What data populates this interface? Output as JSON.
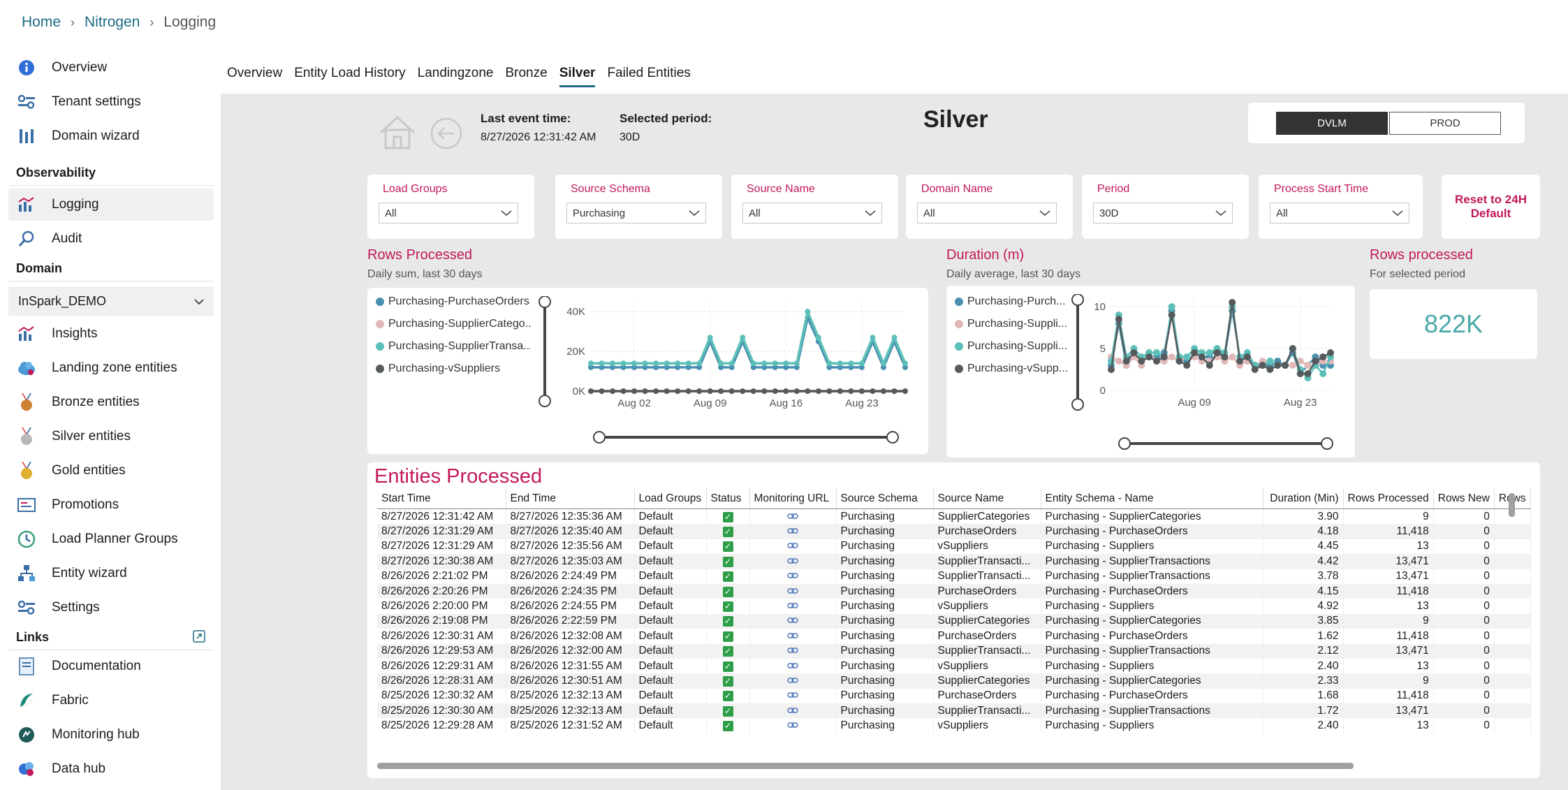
{
  "breadcrumb": [
    "Home",
    "Nitrogen",
    "Logging"
  ],
  "sidebar": {
    "top_items": [
      {
        "label": "Overview",
        "icon": "info-icon"
      },
      {
        "label": "Tenant settings",
        "icon": "tenant-settings-icon"
      },
      {
        "label": "Domain wizard",
        "icon": "domain-wizard-icon"
      }
    ],
    "observability_title": "Observability",
    "observability_items": [
      {
        "label": "Logging",
        "icon": "logging-chart-icon",
        "active": true
      },
      {
        "label": "Audit",
        "icon": "audit-search-icon"
      }
    ],
    "domain_title": "Domain",
    "domain_value": "InSpark_DEMO",
    "domain_items": [
      {
        "label": "Insights",
        "icon": "insights-chart-icon"
      },
      {
        "label": "Landing zone entities",
        "icon": "cloud-icon"
      },
      {
        "label": "Bronze entities",
        "icon": "bronze-medal-icon"
      },
      {
        "label": "Silver entities",
        "icon": "silver-medal-icon"
      },
      {
        "label": "Gold entities",
        "icon": "gold-medal-icon"
      },
      {
        "label": "Promotions",
        "icon": "promotions-icon"
      },
      {
        "label": "Load Planner Groups",
        "icon": "clock-icon"
      },
      {
        "label": "Entity wizard",
        "icon": "entity-wizard-icon"
      },
      {
        "label": "Settings",
        "icon": "settings-icon"
      }
    ],
    "links_title": "Links",
    "links_items": [
      {
        "label": "Documentation",
        "icon": "documentation-icon"
      },
      {
        "label": "Fabric",
        "icon": "fabric-icon"
      },
      {
        "label": "Monitoring hub",
        "icon": "monitoring-hub-icon"
      },
      {
        "label": "Data hub",
        "icon": "data-hub-icon"
      }
    ]
  },
  "tabs": [
    {
      "label": "Overview",
      "active": false
    },
    {
      "label": "Entity Load History",
      "active": false
    },
    {
      "label": "Landingzone",
      "active": false
    },
    {
      "label": "Bronze",
      "active": false
    },
    {
      "label": "Silver",
      "active": true
    },
    {
      "label": "Failed Entities",
      "active": false
    }
  ],
  "report": {
    "last_event_label": "Last event time:",
    "last_event_value": "8/27/2026 12:31:42 AM",
    "selected_period_label": "Selected period:",
    "selected_period_value": "30D",
    "title": "Silver",
    "env_buttons": [
      {
        "label": "DVLM",
        "active": true
      },
      {
        "label": "PROD",
        "active": false
      }
    ],
    "reset_label": "Reset to 24H Default",
    "slicers": [
      {
        "label": "Load Groups",
        "value": "All"
      },
      {
        "label": "Source Schema",
        "value": "Purchasing"
      },
      {
        "label": "Source Name",
        "value": "All"
      },
      {
        "label": "Domain Name",
        "value": "All"
      },
      {
        "label": "Period",
        "value": "30D"
      },
      {
        "label": "Process Start Time",
        "value": "All"
      }
    ],
    "rows_processed_title": "Rows Processed",
    "rows_processed_sub": "Daily sum, last 30 days",
    "duration_title": "Duration (m)",
    "duration_sub": "Daily average, last 30 days",
    "kpi_title": "Rows processed",
    "kpi_sub": "For selected period",
    "kpi_value": "822K",
    "legend_rows": [
      "Purchasing-PurchaseOrders",
      "Purchasing-SupplierCatego...",
      "Purchasing-SupplierTransa...",
      "Purchasing-vSuppliers"
    ],
    "legend_duration": [
      "Purchasing-Purch...",
      "Purchasing-Suppli...",
      "Purchasing-Suppli...",
      "Purchasing-vSupp..."
    ],
    "colors": {
      "accent": "#c2185b",
      "brand": "#1e6b83",
      "kpi": "#4aa8a8"
    },
    "entities_title": "Entities Processed"
  },
  "chart_data": [
    {
      "type": "line",
      "title": "Rows Processed",
      "subtitle": "Daily sum, last 30 days",
      "x_ticks": [
        "Aug 02",
        "Aug 09",
        "Aug 16",
        "Aug 23"
      ],
      "y_ticks": [
        "0K",
        "20K",
        "40K"
      ],
      "ylim": [
        0,
        45000
      ],
      "x": [
        "Jul 29",
        "Jul 30",
        "Jul 31",
        "Aug 01",
        "Aug 02",
        "Aug 03",
        "Aug 04",
        "Aug 05",
        "Aug 06",
        "Aug 07",
        "Aug 08",
        "Aug 09",
        "Aug 10",
        "Aug 11",
        "Aug 12",
        "Aug 13",
        "Aug 14",
        "Aug 15",
        "Aug 16",
        "Aug 17",
        "Aug 18",
        "Aug 19",
        "Aug 20",
        "Aug 21",
        "Aug 22",
        "Aug 23",
        "Aug 24",
        "Aug 25",
        "Aug 26",
        "Aug 27"
      ],
      "series": [
        {
          "name": "Purchasing-PurchaseOrders",
          "color": "#4a90b0",
          "values": [
            12000,
            12000,
            12000,
            12000,
            12000,
            12000,
            12000,
            12000,
            12000,
            12000,
            12000,
            25000,
            12000,
            12000,
            25000,
            12000,
            12000,
            12000,
            12000,
            12000,
            37000,
            25000,
            12000,
            12000,
            12000,
            12000,
            25000,
            12000,
            25000,
            12000
          ]
        },
        {
          "name": "Purchasing-SupplierCategories",
          "color": "#e0b8b8",
          "values": [
            0,
            0,
            0,
            0,
            0,
            0,
            0,
            0,
            0,
            0,
            0,
            0,
            0,
            0,
            0,
            0,
            0,
            0,
            0,
            0,
            0,
            0,
            0,
            0,
            0,
            0,
            0,
            0,
            0,
            0
          ]
        },
        {
          "name": "Purchasing-SupplierTransactions",
          "color": "#5cc0b8",
          "values": [
            14000,
            14000,
            14000,
            14000,
            14000,
            14000,
            14000,
            14000,
            14000,
            14000,
            14000,
            27000,
            14000,
            14000,
            27000,
            14000,
            14000,
            14000,
            14000,
            14000,
            40000,
            27000,
            14000,
            14000,
            14000,
            14000,
            27000,
            14000,
            27000,
            14000
          ]
        },
        {
          "name": "Purchasing-vSuppliers",
          "color": "#555a5c",
          "values": [
            0,
            0,
            0,
            0,
            0,
            0,
            0,
            0,
            0,
            0,
            0,
            0,
            0,
            0,
            0,
            0,
            0,
            0,
            0,
            0,
            0,
            0,
            0,
            0,
            0,
            0,
            0,
            0,
            0,
            0
          ]
        }
      ]
    },
    {
      "type": "line",
      "title": "Duration (m)",
      "subtitle": "Daily average, last 30 days",
      "x_ticks": [
        "Aug 09",
        "Aug 23"
      ],
      "y_ticks": [
        "0",
        "5",
        "10"
      ],
      "ylim": [
        0,
        11
      ],
      "x": [
        "Jul 29",
        "Jul 30",
        "Jul 31",
        "Aug 01",
        "Aug 02",
        "Aug 03",
        "Aug 04",
        "Aug 05",
        "Aug 06",
        "Aug 07",
        "Aug 08",
        "Aug 09",
        "Aug 10",
        "Aug 11",
        "Aug 12",
        "Aug 13",
        "Aug 14",
        "Aug 15",
        "Aug 16",
        "Aug 17",
        "Aug 18",
        "Aug 19",
        "Aug 20",
        "Aug 21",
        "Aug 22",
        "Aug 23",
        "Aug 24",
        "Aug 25",
        "Aug 26",
        "Aug 27"
      ],
      "series": [
        {
          "name": "Purchasing-PurchaseOrders",
          "color": "#4a90b0",
          "values": [
            3,
            8,
            3,
            4.5,
            3.5,
            4,
            4,
            4.5,
            9.5,
            4,
            3.5,
            4.5,
            4,
            4,
            5,
            4,
            9.5,
            4,
            4,
            3,
            3,
            3,
            3.5,
            3,
            4.5,
            2,
            3,
            4,
            3,
            3
          ]
        },
        {
          "name": "Purchasing-SupplierCategories",
          "color": "#e0b8b8",
          "values": [
            4,
            3.5,
            3,
            4,
            3,
            4.5,
            3.5,
            3.5,
            4,
            3.5,
            4,
            4,
            3.5,
            3.5,
            4,
            3.5,
            4,
            3,
            3.5,
            3,
            3.5,
            3.5,
            3,
            3,
            3,
            3.5,
            3,
            3,
            3.5,
            3.5
          ]
        },
        {
          "name": "Purchasing-SupplierTransactions",
          "color": "#5cc0b8",
          "values": [
            3.5,
            9,
            4,
            5,
            4,
            4.5,
            4.5,
            4,
            10,
            4,
            4,
            5,
            4.5,
            4.5,
            5,
            4.5,
            10,
            4,
            4.5,
            3,
            3,
            3.5,
            3,
            3,
            5,
            2.5,
            1.5,
            3,
            2,
            4
          ]
        },
        {
          "name": "Purchasing-vSuppliers",
          "color": "#555a5c",
          "values": [
            2.5,
            8.5,
            3.5,
            4.5,
            3.5,
            4,
            3.5,
            4,
            9,
            3.5,
            3,
            4.5,
            4,
            3,
            4.5,
            4,
            10.5,
            3.5,
            4,
            2.5,
            3,
            2.5,
            3,
            3,
            5,
            2,
            2,
            3.5,
            4,
            4.5
          ]
        }
      ]
    }
  ],
  "table": {
    "columns": [
      "Start Time",
      "End Time",
      "Load Groups",
      "Status",
      "Monitoring URL",
      "Source Schema",
      "Source Name",
      "Entity Schema - Name",
      "Duration (Min)",
      "Rows Processed",
      "Rows New",
      "Rows"
    ],
    "rows": [
      [
        "8/27/2026 12:31:42 AM",
        "8/27/2026 12:35:36 AM",
        "Default",
        "Purchasing",
        "SupplierCategories",
        "Purchasing - SupplierCategories",
        "3.90",
        "9",
        "0"
      ],
      [
        "8/27/2026 12:31:29 AM",
        "8/27/2026 12:35:40 AM",
        "Default",
        "Purchasing",
        "PurchaseOrders",
        "Purchasing - PurchaseOrders",
        "4.18",
        "11,418",
        "0"
      ],
      [
        "8/27/2026 12:31:29 AM",
        "8/27/2026 12:35:56 AM",
        "Default",
        "Purchasing",
        "vSuppliers",
        "Purchasing - Suppliers",
        "4.45",
        "13",
        "0"
      ],
      [
        "8/27/2026 12:30:38 AM",
        "8/27/2026 12:35:03 AM",
        "Default",
        "Purchasing",
        "SupplierTransacti...",
        "Purchasing - SupplierTransactions",
        "4.42",
        "13,471",
        "0"
      ],
      [
        "8/26/2026 2:21:02 PM",
        "8/26/2026 2:24:49 PM",
        "Default",
        "Purchasing",
        "SupplierTransacti...",
        "Purchasing - SupplierTransactions",
        "3.78",
        "13,471",
        "0"
      ],
      [
        "8/26/2026 2:20:26 PM",
        "8/26/2026 2:24:35 PM",
        "Default",
        "Purchasing",
        "PurchaseOrders",
        "Purchasing - PurchaseOrders",
        "4.15",
        "11,418",
        "0"
      ],
      [
        "8/26/2026 2:20:00 PM",
        "8/26/2026 2:24:55 PM",
        "Default",
        "Purchasing",
        "vSuppliers",
        "Purchasing - Suppliers",
        "4.92",
        "13",
        "0"
      ],
      [
        "8/26/2026 2:19:08 PM",
        "8/26/2026 2:22:59 PM",
        "Default",
        "Purchasing",
        "SupplierCategories",
        "Purchasing - SupplierCategories",
        "3.85",
        "9",
        "0"
      ],
      [
        "8/26/2026 12:30:31 AM",
        "8/26/2026 12:32:08 AM",
        "Default",
        "Purchasing",
        "PurchaseOrders",
        "Purchasing - PurchaseOrders",
        "1.62",
        "11,418",
        "0"
      ],
      [
        "8/26/2026 12:29:53 AM",
        "8/26/2026 12:32:00 AM",
        "Default",
        "Purchasing",
        "SupplierTransacti...",
        "Purchasing - SupplierTransactions",
        "2.12",
        "13,471",
        "0"
      ],
      [
        "8/26/2026 12:29:31 AM",
        "8/26/2026 12:31:55 AM",
        "Default",
        "Purchasing",
        "vSuppliers",
        "Purchasing - Suppliers",
        "2.40",
        "13",
        "0"
      ],
      [
        "8/26/2026 12:28:31 AM",
        "8/26/2026 12:30:51 AM",
        "Default",
        "Purchasing",
        "SupplierCategories",
        "Purchasing - SupplierCategories",
        "2.33",
        "9",
        "0"
      ],
      [
        "8/25/2026 12:30:32 AM",
        "8/25/2026 12:32:13 AM",
        "Default",
        "Purchasing",
        "PurchaseOrders",
        "Purchasing - PurchaseOrders",
        "1.68",
        "11,418",
        "0"
      ],
      [
        "8/25/2026 12:30:30 AM",
        "8/25/2026 12:32:13 AM",
        "Default",
        "Purchasing",
        "SupplierTransacti...",
        "Purchasing - SupplierTransactions",
        "1.72",
        "13,471",
        "0"
      ],
      [
        "8/25/2026 12:29:28 AM",
        "8/25/2026 12:31:52 AM",
        "Default",
        "Purchasing",
        "vSuppliers",
        "Purchasing - Suppliers",
        "2.40",
        "13",
        "0"
      ]
    ]
  }
}
